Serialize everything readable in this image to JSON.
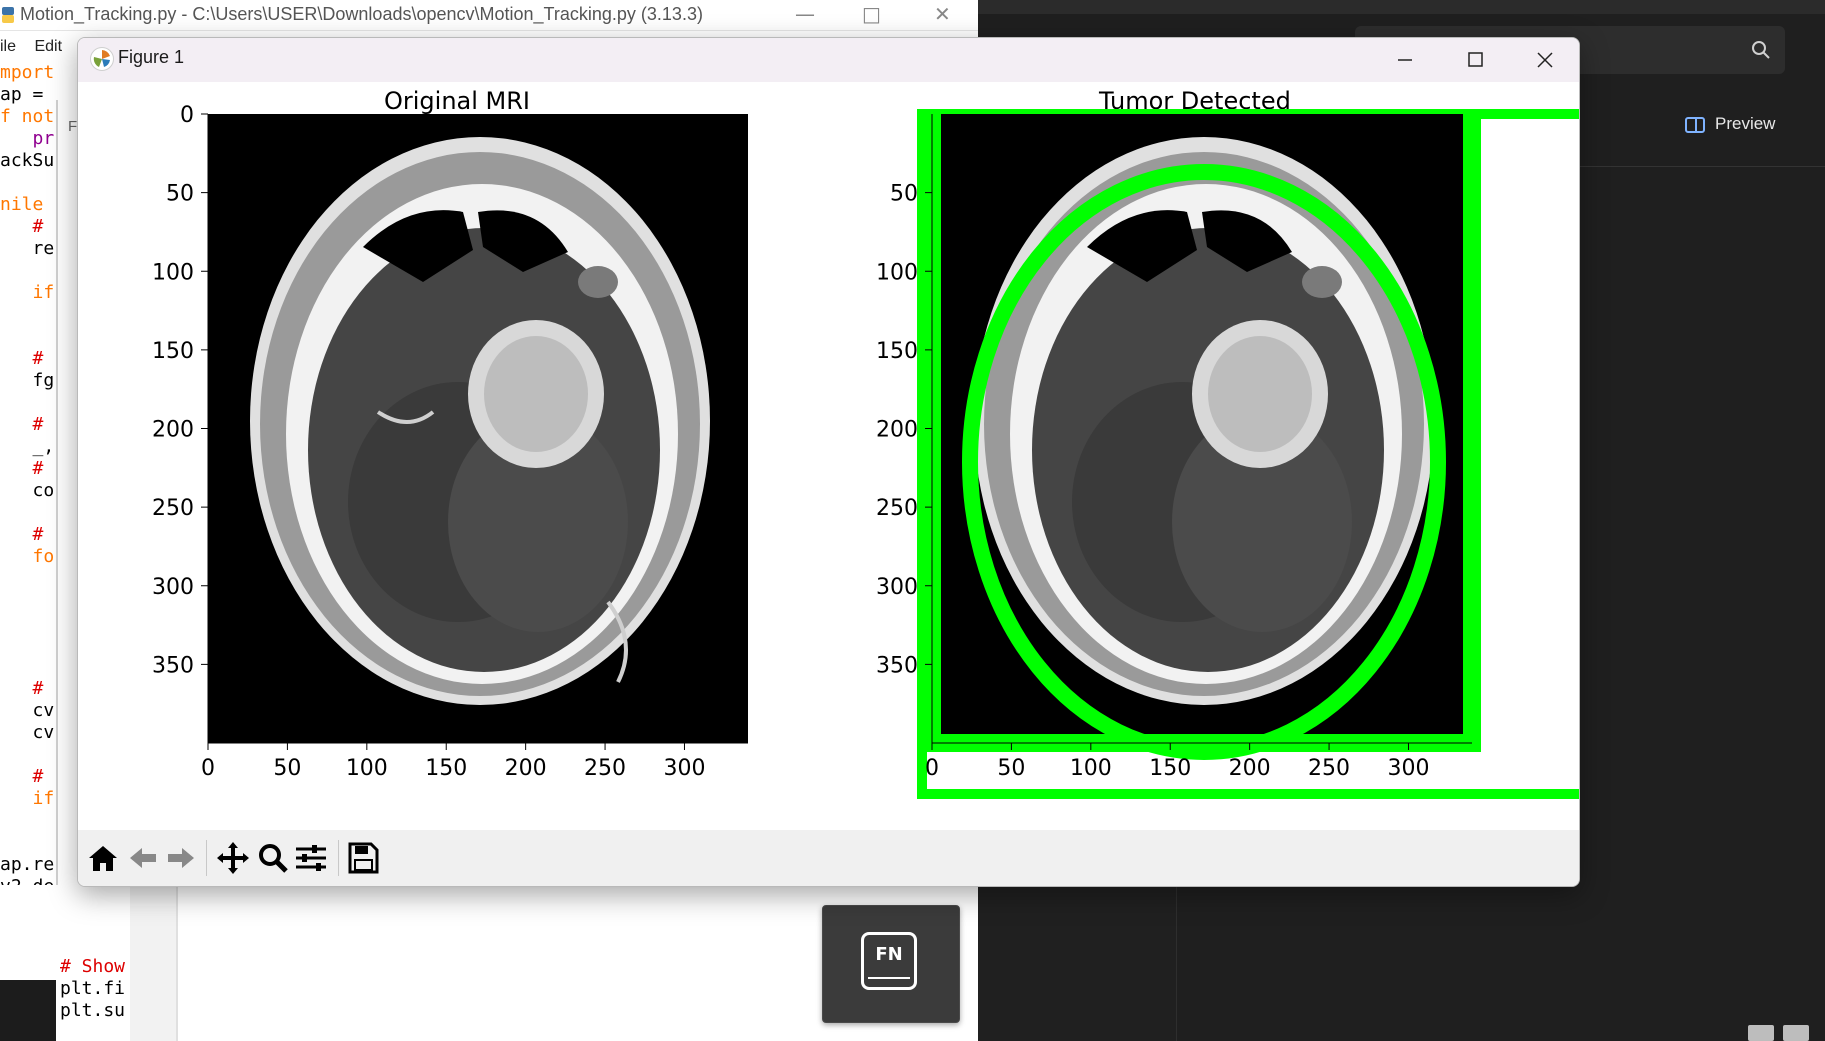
{
  "idle_window": {
    "title": "Motion_Tracking.py - C:\\Users\\USER\\Downloads\\opencv\\Motion_Tracking.py (3.13.3)",
    "menu": [
      "ile",
      "Edit"
    ],
    "code_lines": [
      "mport",
      "ap =",
      "f not",
      "   pr",
      "ackSu",
      "",
      "nile",
      "   #",
      "   re",
      "",
      "   if",
      "",
      "",
      "   #",
      "   fg",
      "",
      "   #",
      "   _,",
      "   #",
      "   co",
      "",
      "   #",
      "   fo",
      "",
      "",
      "",
      "",
      "",
      "   #",
      "   cv",
      "   cv",
      "",
      "   #",
      "   if",
      "",
      "",
      "ap.re",
      "v2.de"
    ],
    "inner_tab": "Fi",
    "bottom_code": [
      "# Show",
      "plt.fi",
      "plt.su"
    ]
  },
  "right_app": {
    "preview_label": "Preview"
  },
  "fn_popup": {
    "key_label": "FN"
  },
  "figure_window": {
    "title": "Figure 1",
    "toolbar": [
      "home-icon",
      "back-arrow-icon",
      "forward-arrow-icon",
      "pan-icon",
      "zoom-icon",
      "configure-subplots-icon",
      "save-icon"
    ]
  },
  "chart_data": [
    {
      "type": "image",
      "title": "Original MRI",
      "xlim": [
        0,
        340
      ],
      "ylim": [
        400,
        0
      ],
      "xticks": [
        "0",
        "50",
        "100",
        "150",
        "200",
        "250",
        "300"
      ],
      "yticks": [
        "0",
        "50",
        "100",
        "150",
        "200",
        "250",
        "300",
        "350"
      ],
      "xlabel": "",
      "ylabel": ""
    },
    {
      "type": "image",
      "title": "Tumor Detected",
      "xlim": [
        0,
        340
      ],
      "ylim": [
        400,
        0
      ],
      "xticks": [
        "0",
        "50",
        "100",
        "150",
        "200",
        "250",
        "300"
      ],
      "yticks": [
        "50",
        "100",
        "150",
        "200",
        "250",
        "300",
        "350"
      ],
      "xlabel": "",
      "ylabel": "",
      "annotation_color": "#00ff00"
    }
  ]
}
